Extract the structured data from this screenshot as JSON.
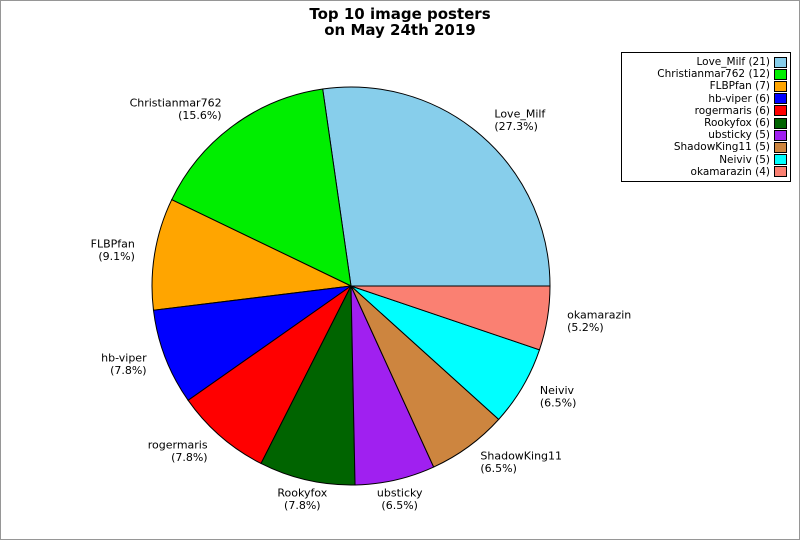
{
  "title": {
    "line1": "Top 10 image posters",
    "line2": "on May 24th 2019"
  },
  "legend": {
    "position": "upper right",
    "items": [
      {
        "label": "Love_Milf (21)",
        "color": "#87CEEB"
      },
      {
        "label": "Christianmar762 (12)",
        "color": "#00EE00"
      },
      {
        "label": "FLBPfan (7)",
        "color": "#FFA500"
      },
      {
        "label": "hb-viper (6)",
        "color": "#0000FF"
      },
      {
        "label": "rogermaris (6)",
        "color": "#FF0000"
      },
      {
        "label": "Rookyfox (6)",
        "color": "#006400"
      },
      {
        "label": "ubsticky (5)",
        "color": "#A020F0"
      },
      {
        "label": "ShadowKing11 (5)",
        "color": "#CD853F"
      },
      {
        "label": "Neiviv (5)",
        "color": "#00FFFF"
      },
      {
        "label": "okamarazin (4)",
        "color": "#FA8072"
      }
    ]
  },
  "chart_data": {
    "type": "pie",
    "title": "Top 10 image posters on May 24th 2019",
    "start_angle_deg": 0,
    "direction": "counterclockwise",
    "legend_position": "upper right",
    "series": [
      {
        "name": "Love_Milf",
        "value": 21,
        "percent": 27.3,
        "pct_label": "(27.3%)",
        "color": "#87CEEB"
      },
      {
        "name": "Christianmar762",
        "value": 12,
        "percent": 15.6,
        "pct_label": "(15.6%)",
        "color": "#00EE00"
      },
      {
        "name": "FLBPfan",
        "value": 7,
        "percent": 9.1,
        "pct_label": "(9.1%)",
        "color": "#FFA500"
      },
      {
        "name": "hb-viper",
        "value": 6,
        "percent": 7.8,
        "pct_label": "(7.8%)",
        "color": "#0000FF"
      },
      {
        "name": "rogermaris",
        "value": 6,
        "percent": 7.8,
        "pct_label": "(7.8%)",
        "color": "#FF0000"
      },
      {
        "name": "Rookyfox",
        "value": 6,
        "percent": 7.8,
        "pct_label": "(7.8%)",
        "color": "#006400"
      },
      {
        "name": "ubsticky",
        "value": 5,
        "percent": 6.5,
        "pct_label": "(6.5%)",
        "color": "#A020F0"
      },
      {
        "name": "ShadowKing11",
        "value": 5,
        "percent": 6.5,
        "pct_label": "(6.5%)",
        "color": "#CD853F"
      },
      {
        "name": "Neiviv",
        "value": 5,
        "percent": 6.5,
        "pct_label": "(6.5%)",
        "color": "#00FFFF"
      },
      {
        "name": "okamarazin",
        "value": 4,
        "percent": 5.2,
        "pct_label": "(5.2%)",
        "color": "#FA8072"
      }
    ]
  }
}
